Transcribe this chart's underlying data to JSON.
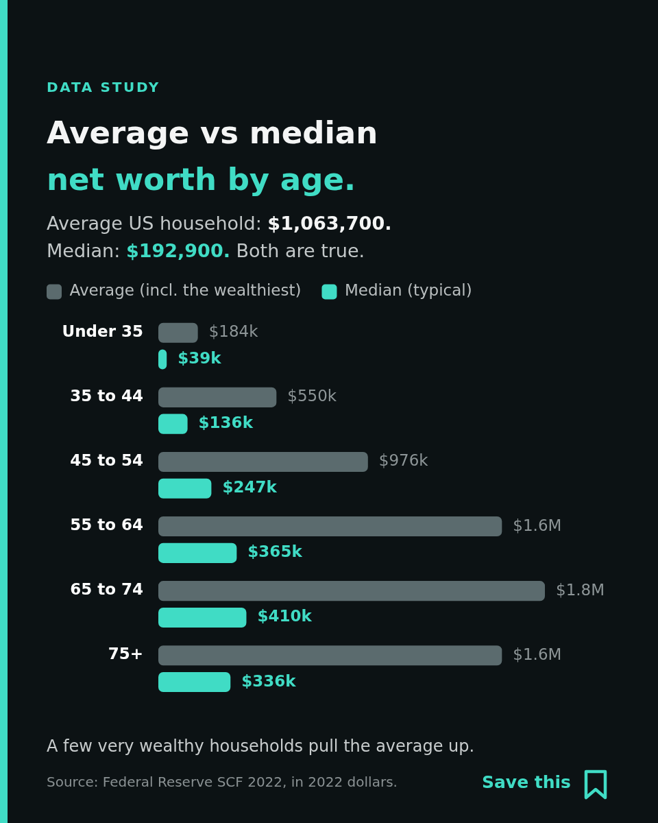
{
  "chart_data": {
    "type": "bar",
    "orientation": "horizontal",
    "title": "Average vs median\nnet worth by age.",
    "subtitle": "Average US household: $1,063,700.\nMedian: $192,900. Both are true.",
    "annotations": [
      "DATA STUDY",
      "A few very wealthy households pull the average up.",
      "Source: Federal Reserve SCF 2022, in 2022 dollars.",
      "Save this"
    ],
    "categories": [
      "Under 35",
      "35 to 44",
      "45 to 54",
      "55 to 64",
      "65 to 74",
      "75+"
    ],
    "series": [
      {
        "name": "Average (incl. the wealthiest)",
        "color": "#5b6b6e",
        "values": [
          184000,
          550000,
          976000,
          1600000,
          1800000,
          1600000
        ],
        "value_labels": [
          "$184k",
          "$550k",
          "$976k",
          "$1.6M",
          "$1.8M",
          "$1.6M"
        ]
      },
      {
        "name": "Median (typical)",
        "color": "#40dcc5",
        "values": [
          39000,
          136000,
          247000,
          365000,
          410000,
          336000
        ],
        "value_labels": [
          "$39k",
          "$136k",
          "$247k",
          "$365k",
          "$410k",
          "$336k"
        ]
      }
    ],
    "legend": "top left",
    "tick_labels": "y",
    "grid": false
  }
}
